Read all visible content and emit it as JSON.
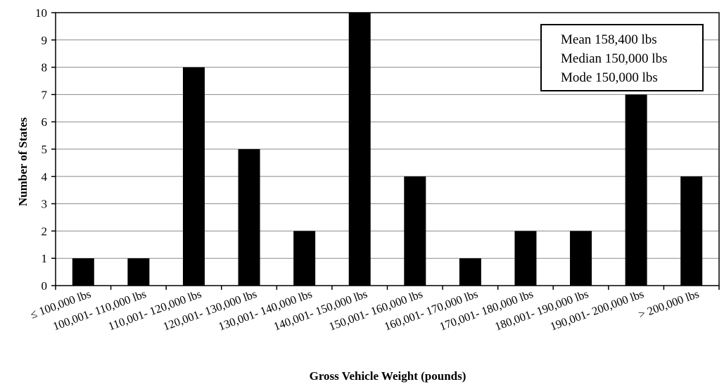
{
  "chart_data": {
    "type": "bar",
    "categories": [
      "≤ 100,000 lbs",
      "100,001- 110,000 lbs",
      "110,001- 120,000 lbs",
      "120,001- 130,000 lbs",
      "130,001- 140,000 lbs",
      "140,001- 150,000 lbs",
      "150,001- 160,000 lbs",
      "160,001- 170,000 lbs",
      "170,001- 180,000 lbs",
      "180,001- 190,000 lbs",
      "190,001- 200,000 lbs",
      "> 200,000 lbs"
    ],
    "values": [
      1,
      1,
      8,
      5,
      2,
      10,
      4,
      1,
      2,
      2,
      7,
      4
    ],
    "title": "",
    "xlabel": "Gross Vehicle Weight (pounds)",
    "ylabel": "Number of  States",
    "ylim": [
      0,
      10
    ],
    "yticks": [
      "0",
      "1",
      "2",
      "3",
      "4",
      "5",
      "6",
      "7",
      "8",
      "9",
      "10"
    ],
    "grid": "horizontal",
    "bar_color": "#000000",
    "annotation": {
      "position": "top-right",
      "lines": [
        "Mean 158,400 lbs",
        "Median 150,000 lbs",
        "Mode 150,000 lbs"
      ]
    }
  }
}
